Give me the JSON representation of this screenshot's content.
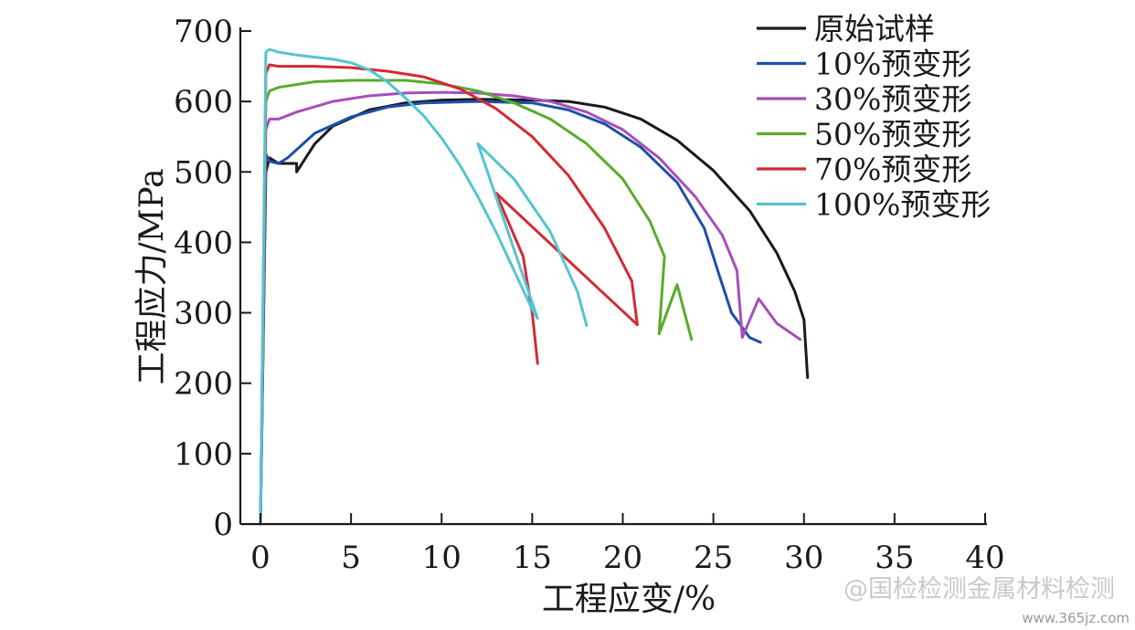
{
  "chart_data": {
    "type": "line",
    "xlabel": "工程应变/%",
    "ylabel": "工程应力/MPa",
    "xlim": [
      0,
      40
    ],
    "ylim": [
      0,
      700
    ],
    "x_ticks": [
      "0",
      "5",
      "10",
      "15",
      "20",
      "25",
      "30",
      "35",
      "40"
    ],
    "y_ticks": [
      "0",
      "100",
      "200",
      "300",
      "400",
      "500",
      "600",
      "700"
    ],
    "grid": false,
    "legend_position": "top-right",
    "series": [
      {
        "name": "原始试样",
        "color": "#1a1a1a",
        "points": [
          [
            0,
            0
          ],
          [
            0.3,
            500
          ],
          [
            0.5,
            520
          ],
          [
            1,
            512
          ],
          [
            2,
            512
          ],
          [
            2,
            500
          ],
          [
            3,
            540
          ],
          [
            4,
            565
          ],
          [
            6,
            588
          ],
          [
            8,
            598
          ],
          [
            10,
            602
          ],
          [
            12,
            603
          ],
          [
            15,
            602
          ],
          [
            17,
            600
          ],
          [
            19,
            592
          ],
          [
            21,
            575
          ],
          [
            23,
            545
          ],
          [
            25,
            502
          ],
          [
            27,
            445
          ],
          [
            28.5,
            385
          ],
          [
            29.5,
            330
          ],
          [
            30,
            290
          ],
          [
            30.2,
            208
          ]
        ]
      },
      {
        "name": "10%预变形",
        "color": "#1f4fa8",
        "points": [
          [
            0,
            0
          ],
          [
            0.3,
            525
          ],
          [
            0.5,
            515
          ],
          [
            1,
            512
          ],
          [
            1.5,
            520
          ],
          [
            3,
            555
          ],
          [
            5,
            578
          ],
          [
            7,
            592
          ],
          [
            9,
            598
          ],
          [
            12,
            600
          ],
          [
            15,
            598
          ],
          [
            17,
            588
          ],
          [
            19,
            568
          ],
          [
            21,
            535
          ],
          [
            23,
            485
          ],
          [
            24.5,
            420
          ],
          [
            25.3,
            355
          ],
          [
            26,
            300
          ],
          [
            27,
            265
          ],
          [
            27.6,
            258
          ]
        ]
      },
      {
        "name": "30%预变形",
        "color": "#a64fb8",
        "points": [
          [
            0,
            0
          ],
          [
            0.3,
            560
          ],
          [
            0.5,
            575
          ],
          [
            1,
            575
          ],
          [
            2,
            585
          ],
          [
            4,
            600
          ],
          [
            6,
            608
          ],
          [
            8,
            612
          ],
          [
            10,
            613
          ],
          [
            12,
            612
          ],
          [
            14,
            608
          ],
          [
            16,
            600
          ],
          [
            18,
            585
          ],
          [
            20,
            560
          ],
          [
            22,
            520
          ],
          [
            24,
            465
          ],
          [
            25.5,
            410
          ],
          [
            26.3,
            360
          ],
          [
            26.6,
            265
          ],
          [
            27.5,
            320
          ],
          [
            28.5,
            285
          ],
          [
            29.8,
            262
          ]
        ]
      },
      {
        "name": "50%预变形",
        "color": "#5aab2e",
        "points": [
          [
            0,
            0
          ],
          [
            0.3,
            600
          ],
          [
            0.5,
            615
          ],
          [
            1,
            620
          ],
          [
            3,
            628
          ],
          [
            5,
            630
          ],
          [
            8,
            630
          ],
          [
            10,
            625
          ],
          [
            12,
            615
          ],
          [
            14,
            598
          ],
          [
            16,
            575
          ],
          [
            18,
            540
          ],
          [
            20,
            490
          ],
          [
            21.5,
            430
          ],
          [
            22.3,
            380
          ],
          [
            22,
            270
          ],
          [
            23,
            340
          ],
          [
            23.8,
            262
          ]
        ]
      },
      {
        "name": "70%预变形",
        "color": "#d22b36",
        "points": [
          [
            0,
            0
          ],
          [
            0.3,
            640
          ],
          [
            0.5,
            652
          ],
          [
            1,
            650
          ],
          [
            3,
            650
          ],
          [
            5,
            648
          ],
          [
            7,
            643
          ],
          [
            9,
            635
          ],
          [
            11,
            618
          ],
          [
            13,
            590
          ],
          [
            15,
            550
          ],
          [
            17,
            495
          ],
          [
            19,
            420
          ],
          [
            20.5,
            345
          ],
          [
            20.8,
            283
          ],
          [
            13,
            470
          ],
          [
            14.5,
            380
          ],
          [
            15,
            300
          ],
          [
            15.3,
            228
          ]
        ]
      },
      {
        "name": "100%预变形",
        "color": "#56c4d1",
        "points": [
          [
            0,
            0
          ],
          [
            0.3,
            670
          ],
          [
            0.5,
            674
          ],
          [
            1,
            670
          ],
          [
            2,
            666
          ],
          [
            4,
            660
          ],
          [
            5,
            655
          ],
          [
            6,
            645
          ],
          [
            7,
            628
          ],
          [
            8,
            605
          ],
          [
            9,
            580
          ],
          [
            10,
            548
          ],
          [
            11,
            510
          ],
          [
            12,
            465
          ],
          [
            13,
            415
          ],
          [
            14,
            360
          ],
          [
            15,
            305
          ],
          [
            15.3,
            292
          ],
          [
            12,
            540
          ],
          [
            14,
            490
          ],
          [
            16,
            415
          ],
          [
            17.5,
            330
          ],
          [
            18,
            282
          ]
        ]
      }
    ]
  },
  "watermark": {
    "text": "@国检检测金属材料检测",
    "url": "www.365jz.com"
  }
}
